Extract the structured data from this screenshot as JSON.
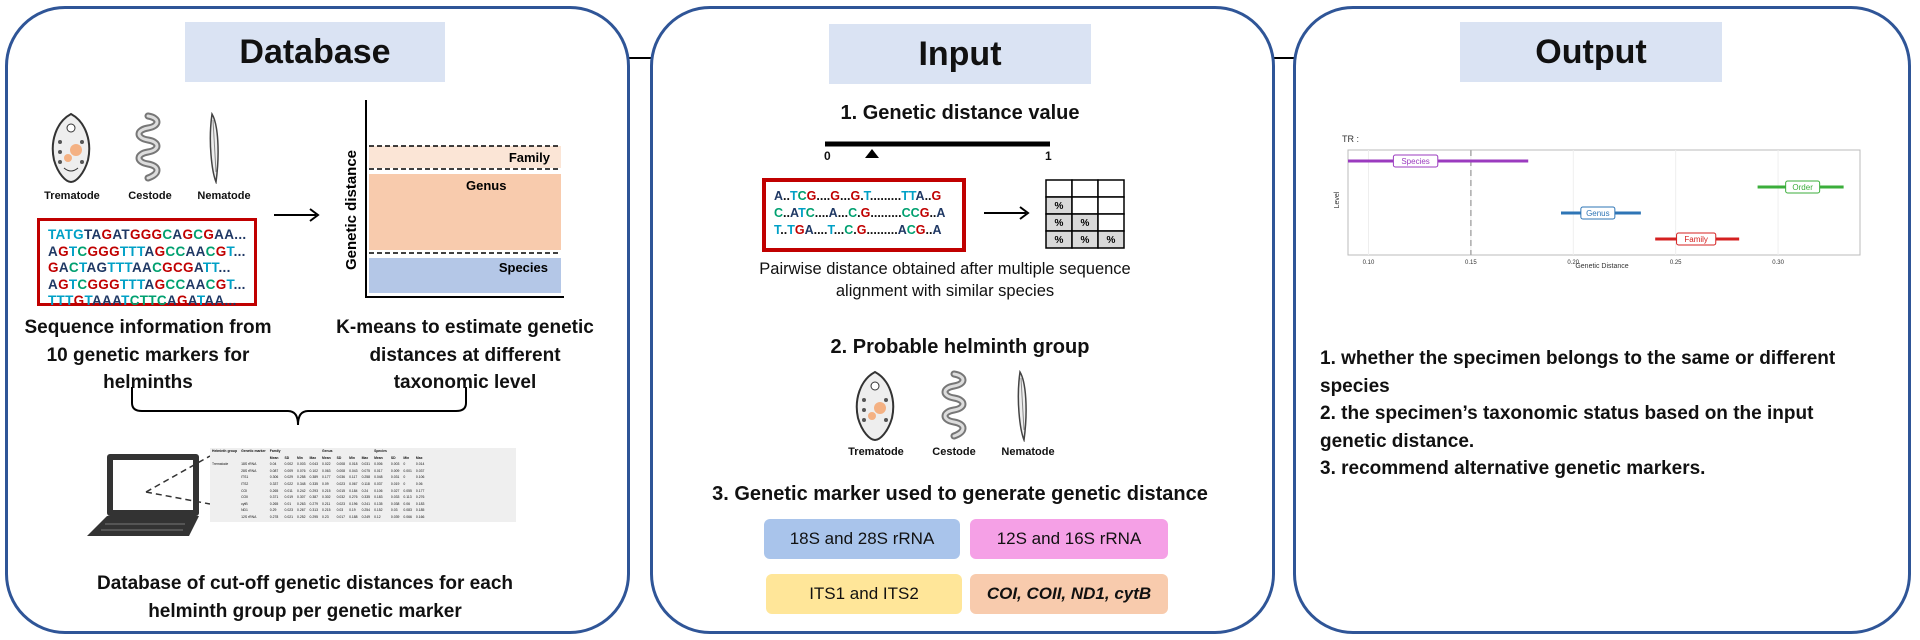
{
  "panels": {
    "database": {
      "title": "Database",
      "helminths": [
        "Trematode",
        "Cestode",
        "Nematode"
      ],
      "sequences": [
        [
          [
            "T",
            "TATG"
          ],
          [
            "A",
            "TA"
          ],
          [
            "G",
            "G"
          ],
          [
            "A",
            "AT"
          ],
          [
            "G",
            "GGG"
          ],
          [
            "C",
            "C"
          ],
          [
            "A",
            "A"
          ],
          [
            "G",
            "G"
          ],
          [
            "C",
            "C"
          ],
          [
            "G",
            "G"
          ],
          [
            "A",
            "AA"
          ],
          [
            "A",
            "..."
          ]
        ],
        [
          [
            "A",
            "A"
          ],
          [
            "G",
            "G"
          ],
          [
            "T",
            "T"
          ],
          [
            "C",
            "C"
          ],
          [
            "G",
            "GGG"
          ],
          [
            "T",
            "TTT"
          ],
          [
            "A",
            "A"
          ],
          [
            "G",
            "G"
          ],
          [
            "C",
            "CC"
          ],
          [
            "A",
            "AA"
          ],
          [
            "C",
            "C"
          ],
          [
            "G",
            "G"
          ],
          [
            "T",
            "T"
          ],
          [
            "A",
            "..."
          ]
        ],
        [
          [
            "G",
            "G"
          ],
          [
            "A",
            "A"
          ],
          [
            "C",
            "C"
          ],
          [
            "T",
            "T"
          ],
          [
            "A",
            "AG"
          ],
          [
            "T",
            "TTT"
          ],
          [
            "A",
            "AA"
          ],
          [
            "C",
            "C"
          ],
          [
            "G",
            "GC"
          ],
          [
            "G",
            "G"
          ],
          [
            "A",
            "A"
          ],
          [
            "T",
            "TT"
          ],
          [
            "A",
            "..."
          ]
        ],
        [
          [
            "A",
            "A"
          ],
          [
            "G",
            "G"
          ],
          [
            "T",
            "T"
          ],
          [
            "C",
            "C"
          ],
          [
            "G",
            "GGG"
          ],
          [
            "T",
            "TTT"
          ],
          [
            "A",
            "A"
          ],
          [
            "G",
            "G"
          ],
          [
            "C",
            "CC"
          ],
          [
            "A",
            "AA"
          ],
          [
            "C",
            "C"
          ],
          [
            "G",
            "G"
          ],
          [
            "T",
            "T"
          ],
          [
            "A",
            "..."
          ]
        ],
        [
          [
            "T",
            "TTT"
          ],
          [
            "G",
            "G"
          ],
          [
            "T",
            "T"
          ],
          [
            "A",
            "AAA"
          ],
          [
            "T",
            "T"
          ],
          [
            "C",
            "CTTC"
          ],
          [
            "A",
            "A"
          ],
          [
            "G",
            "G"
          ],
          [
            "A",
            "A"
          ],
          [
            "T",
            "T"
          ],
          [
            "A",
            "AA"
          ],
          [
            "A",
            "..."
          ]
        ]
      ],
      "seq_caption": "Sequence information from 10 genetic markers for helminths",
      "kmeans": {
        "axis_label": "Genetic distance",
        "bands": [
          "Family",
          "Genus",
          "Species"
        ],
        "caption": "K-means to estimate genetic distances at different taxonomic level"
      },
      "db_caption": "Database of cut-off genetic distances for each helminth group per genetic marker",
      "table": {
        "header": [
          "Helminth group",
          "Genetic marker",
          "Family",
          "",
          "",
          "",
          "Genus",
          "",
          "",
          "",
          "Species",
          "",
          "",
          ""
        ],
        "subheader": [
          "",
          "",
          "Mean",
          "SD",
          "Min",
          "Max",
          "Mean",
          "SD",
          "Min",
          "Max",
          "Mean",
          "SD",
          "Min",
          "Max"
        ],
        "rows": [
          [
            "Trematode",
            "18S rRNA",
            "0.04",
            "0.002",
            "0.003",
            "0.043",
            "0.022",
            "0.008",
            "0.018",
            "0.031",
            "0.006",
            "0.003",
            "0",
            "0.014"
          ],
          [
            "",
            "28S rRNA",
            "0.087",
            "0.009",
            "0.076",
            "0.102",
            "0.063",
            "0.008",
            "0.043",
            "0.075",
            "0.017",
            "0.009",
            "0.001",
            "0.037"
          ],
          [
            "",
            "ITS1",
            "0.306",
            "0.029",
            "0.258",
            "0.389",
            "0.177",
            "0.036",
            "0.117",
            "0.258",
            "0.048",
            "0.031",
            "0",
            "0.106"
          ],
          [
            "",
            "ITS2",
            "0.337",
            "0.022",
            "0.348",
            "0.335",
            "0.09",
            "0.023",
            "0.067",
            "0.118",
            "0.037",
            "0.019",
            "0",
            "0.06"
          ],
          [
            "",
            "COI",
            "0.265",
            "0.011",
            "0.242",
            "0.293",
            "0.215",
            "0.015",
            "0.184",
            "0.24",
            "0.106",
            "0.027",
            "0.055",
            "0.177"
          ],
          [
            "",
            "COII",
            "0.371",
            "0.019",
            "0.307",
            "0.387",
            "0.302",
            "0.032",
            "0.276",
            "0.335",
            "0.183",
            "0.033",
            "0.113",
            "0.276"
          ],
          [
            "",
            "cytB",
            "0.265",
            "0.01",
            "0.263",
            "0.279",
            "0.211",
            "0.023",
            "0.196",
            "0.241",
            "0.135",
            "0.038",
            "0.06",
            "0.183"
          ],
          [
            "",
            "ND1",
            "0.29",
            "0.023",
            "0.267",
            "0.313",
            "0.215",
            "0.03",
            "0.19",
            "0.254",
            "0.152",
            "0.03",
            "0.083",
            "0.185"
          ],
          [
            "",
            "12S rRNA",
            "0.278",
            "0.021",
            "0.252",
            "0.295",
            "0.23",
            "0.017",
            "0.188",
            "0.249",
            "0.12",
            "0.039",
            "0.066",
            "0.166"
          ],
          [
            "",
            "16S rRNA",
            "0.244",
            "0.015",
            "0.21",
            "0.27",
            "0.181",
            "0.022",
            "0.151",
            "0.215",
            "0.119",
            "0.025",
            "0.071",
            "0.157"
          ]
        ]
      }
    },
    "input": {
      "title": "Input",
      "step1": "1. Genetic distance value",
      "scale_min": "0",
      "scale_max": "1",
      "alignment": [
        [
          [
            "A",
            "A"
          ],
          [
            "N",
            ".."
          ],
          [
            "T",
            "T"
          ],
          [
            "C",
            "C"
          ],
          [
            "G",
            "G"
          ],
          [
            "N",
            "...."
          ],
          [
            "G",
            "G"
          ],
          [
            "N",
            "..."
          ],
          [
            "G",
            "G"
          ],
          [
            "N",
            "."
          ],
          [
            "T",
            "T"
          ],
          [
            "N",
            "........."
          ],
          [
            "T",
            "TT"
          ],
          [
            "A",
            "A"
          ],
          [
            "N",
            ".."
          ],
          [
            "G",
            "G"
          ]
        ],
        [
          [
            "C",
            "C"
          ],
          [
            "N",
            ".."
          ],
          [
            "A",
            "A"
          ],
          [
            "T",
            "T"
          ],
          [
            "C",
            "C"
          ],
          [
            "N",
            "...."
          ],
          [
            "A",
            "A"
          ],
          [
            "N",
            "..."
          ],
          [
            "C",
            "C"
          ],
          [
            "N",
            "."
          ],
          [
            "G",
            "G"
          ],
          [
            "N",
            "........."
          ],
          [
            "C",
            "CC"
          ],
          [
            "G",
            "G"
          ],
          [
            "N",
            ".."
          ],
          [
            "A",
            "A"
          ]
        ],
        [
          [
            "T",
            "T"
          ],
          [
            "N",
            ".."
          ],
          [
            "T",
            "T"
          ],
          [
            "G",
            "G"
          ],
          [
            "A",
            "A"
          ],
          [
            "N",
            "...."
          ],
          [
            "T",
            "T"
          ],
          [
            "N",
            "..."
          ],
          [
            "C",
            "C"
          ],
          [
            "N",
            "."
          ],
          [
            "G",
            "G"
          ],
          [
            "N",
            "........."
          ],
          [
            "A",
            "A"
          ],
          [
            "C",
            "C"
          ],
          [
            "G",
            "G"
          ],
          [
            "N",
            ".."
          ],
          [
            "A",
            "A"
          ]
        ]
      ],
      "matrix_symbol": "%",
      "alignment_caption": "Pairwise distance obtained after multiple sequence alignment with similar species",
      "step2": "2. Probable helminth group",
      "helminths": [
        "Trematode",
        "Cestode",
        "Nematode"
      ],
      "step3": "3. Genetic marker used to generate genetic distance",
      "markers": [
        {
          "label": "18S and 28S rRNA",
          "color": "#a9c4eb"
        },
        {
          "label": "12S and 16S rRNA",
          "color": "#f5a0e6"
        },
        {
          "label": "ITS1 and ITS2",
          "color": "#ffe699"
        },
        {
          "label": "COI, COII, ND1, cytB",
          "color": "#f8cbad"
        }
      ]
    },
    "output": {
      "title": "Output",
      "plot": {
        "tr_label": "TR :",
        "ylabel": "Level",
        "xlabel": "Genetic Distance",
        "ticks": [
          "0.10",
          "0.15",
          "0.20",
          "0.25",
          "0.30"
        ],
        "xlim": [
          0.09,
          0.34
        ],
        "dashed_at": 0.15
      },
      "chart_data": {
        "type": "interval",
        "series": [
          {
            "name": "Species",
            "x0": 0.09,
            "x1": 0.178,
            "mid": 0.123,
            "color": "#9b3bbf",
            "row": 3
          },
          {
            "name": "Order",
            "x0": 0.29,
            "x1": 0.332,
            "mid": 0.312,
            "color": "#3bae3b",
            "row": 2
          },
          {
            "name": "Genus",
            "x0": 0.194,
            "x1": 0.233,
            "mid": 0.212,
            "color": "#2e75b6",
            "row": 1
          },
          {
            "name": "Family",
            "x0": 0.24,
            "x1": 0.281,
            "mid": 0.26,
            "color": "#d42020",
            "row": 0
          }
        ]
      },
      "results": [
        "1. whether the specimen belongs to the same or different species",
        "2. the specimen’s taxonomic status based on the input genetic distance.",
        "3. recommend alternative genetic markers."
      ]
    }
  }
}
